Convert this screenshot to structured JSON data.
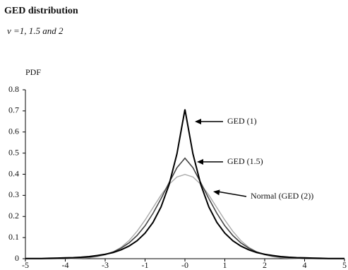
{
  "chart_data": {
    "type": "line",
    "title": "GED distribution",
    "subtitle": "ν =1, 1.5 and 2",
    "y_label": "PDF",
    "x": [
      -5,
      -4.75,
      -4.5,
      -4.25,
      -4,
      -3.75,
      -3.5,
      -3.25,
      -3,
      -2.75,
      -2.5,
      -2.25,
      -2,
      -1.75,
      -1.5,
      -1.25,
      -1,
      -0.75,
      -0.5,
      -0.25,
      0,
      0.25,
      0.5,
      0.75,
      1,
      1.25,
      1.5,
      1.75,
      2,
      2.25,
      2.5,
      2.75,
      3,
      3.25,
      3.5,
      3.75,
      4,
      4.25,
      4.5,
      4.75,
      5
    ],
    "series": [
      {
        "name": "GED (1)",
        "color": "#000000",
        "values": [
          0.001,
          0.001,
          0.001,
          0.002,
          0.003,
          0.004,
          0.005,
          0.007,
          0.01,
          0.015,
          0.021,
          0.029,
          0.042,
          0.06,
          0.085,
          0.121,
          0.172,
          0.245,
          0.349,
          0.497,
          0.707,
          0.497,
          0.349,
          0.245,
          0.172,
          0.121,
          0.085,
          0.06,
          0.042,
          0.029,
          0.021,
          0.015,
          0.01,
          0.007,
          0.005,
          0.004,
          0.003,
          0.002,
          0.001,
          0.001,
          0.001
        ]
      },
      {
        "name": "GED (1.5)",
        "color": "#444444",
        "values": [
          0,
          0,
          0,
          0,
          0.001,
          0.001,
          0.003,
          0.004,
          0.008,
          0.013,
          0.02,
          0.032,
          0.05,
          0.075,
          0.11,
          0.156,
          0.215,
          0.284,
          0.359,
          0.431,
          0.476,
          0.431,
          0.359,
          0.284,
          0.215,
          0.156,
          0.11,
          0.075,
          0.05,
          0.032,
          0.02,
          0.013,
          0.008,
          0.004,
          0.003,
          0.001,
          0.001,
          0,
          0,
          0,
          0
        ]
      },
      {
        "name": "Normal (GED (2))",
        "color": "#aaaaaa",
        "values": [
          0,
          0,
          0,
          0,
          0,
          0,
          0.001,
          0.002,
          0.004,
          0.009,
          0.018,
          0.032,
          0.054,
          0.086,
          0.13,
          0.183,
          0.242,
          0.301,
          0.352,
          0.387,
          0.399,
          0.387,
          0.352,
          0.301,
          0.242,
          0.183,
          0.13,
          0.086,
          0.054,
          0.032,
          0.018,
          0.009,
          0.004,
          0.002,
          0.001,
          0,
          0,
          0,
          0,
          0,
          0
        ]
      }
    ],
    "xlim": [
      -5,
      5
    ],
    "xticks": [
      {
        "value": -5,
        "label": "-5"
      },
      {
        "value": -3.75,
        "label": "-4"
      },
      {
        "value": -2.5,
        "label": "-3"
      },
      {
        "value": -1.25,
        "label": "-1"
      },
      {
        "value": 0,
        "label": "-0"
      },
      {
        "value": 1.25,
        "label": "1"
      },
      {
        "value": 2.5,
        "label": "2"
      },
      {
        "value": 3.75,
        "label": "4"
      },
      {
        "value": 5,
        "label": "5"
      }
    ],
    "ylim": [
      0,
      0.8
    ],
    "yticks": [
      0,
      0.1,
      0.2,
      0.3,
      0.4,
      0.5,
      0.6,
      0.7,
      0.8
    ]
  }
}
